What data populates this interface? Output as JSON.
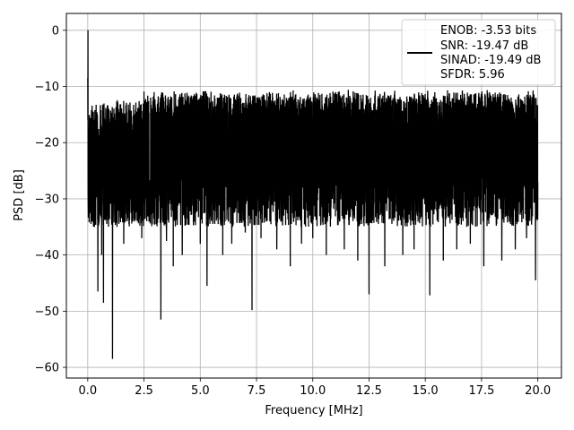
{
  "chart_data": {
    "type": "line",
    "xlabel": "Frequency [MHz]",
    "ylabel": "PSD [dB]",
    "xlim": [
      -0.95,
      21.05
    ],
    "ylim": [
      -61.9,
      3.0
    ],
    "xticks": [
      0.0,
      2.5,
      5.0,
      7.5,
      10.0,
      12.5,
      15.0,
      17.5,
      20.0
    ],
    "xtick_labels": [
      "0.0",
      "2.5",
      "5.0",
      "7.5",
      "10.0",
      "12.5",
      "15.0",
      "17.5",
      "20.0"
    ],
    "yticks": [
      0,
      -10,
      -20,
      -30,
      -40,
      -50,
      -60
    ],
    "ytick_labels": [
      "0",
      "−10",
      "−20",
      "−30",
      "−40",
      "−50",
      "−60"
    ],
    "grid": true,
    "legend_position": "top-right",
    "legend_lines": [
      "ENOB: -3.53 bits",
      "SNR: -19.47 dB",
      "SINAD: -19.49 dB",
      "SFDR: 5.96"
    ],
    "series_color": "#000000",
    "series": [
      {
        "x": [
          0.0,
          0.01,
          0.03,
          0.05,
          0.08,
          0.12,
          0.3,
          0.45,
          0.62,
          0.7,
          1.1,
          1.3,
          1.6,
          2.0,
          2.4,
          3.25,
          3.5,
          3.8,
          4.2,
          5.0,
          5.3,
          6.0,
          6.4,
          7.0,
          7.3,
          7.7,
          8.4,
          9.0,
          9.5,
          10.0,
          10.6,
          11.4,
          12.0,
          12.5,
          13.2,
          14.0,
          14.5,
          15.2,
          15.8,
          16.4,
          17.0,
          17.6,
          18.4,
          19.0,
          19.5,
          19.9,
          20.0
        ],
        "y": [
          -8.5,
          0.0,
          -22.0,
          -33.0,
          -20.0,
          -30.0,
          -35.0,
          -46.5,
          -40.0,
          -48.5,
          -58.5,
          -35.0,
          -38.0,
          -34.0,
          -37.0,
          -51.5,
          -37.5,
          -42.0,
          -40.0,
          -38.0,
          -45.5,
          -40.0,
          -38.0,
          -36.0,
          -49.8,
          -37.0,
          -39.0,
          -42.0,
          -38.0,
          -37.0,
          -40.0,
          -39.0,
          -41.0,
          -47.0,
          -42.0,
          -40.0,
          -39.0,
          -47.2,
          -41.0,
          -39.0,
          -38.0,
          -42.0,
          -41.0,
          -39.0,
          -37.0,
          -44.5,
          -27.0
        ]
      }
    ]
  }
}
